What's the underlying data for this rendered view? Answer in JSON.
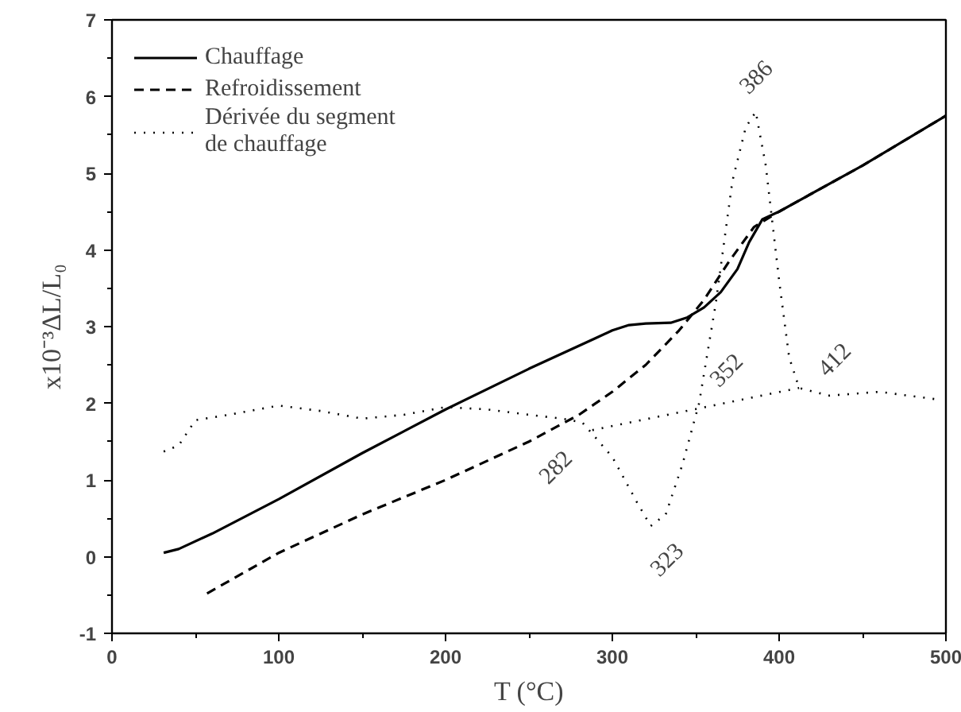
{
  "chart_data": {
    "type": "line",
    "xlabel": "T (°C)",
    "ylabel": "x10⁻³ΔL/L₀",
    "xlim": [
      0,
      500
    ],
    "ylim": [
      -1,
      7
    ],
    "xticks": [
      0,
      100,
      200,
      300,
      400,
      500
    ],
    "yticks": [
      -1,
      0,
      1,
      2,
      3,
      4,
      5,
      6,
      7
    ],
    "grid": false,
    "legend": "top left",
    "series": [
      {
        "name": "Chauffage",
        "color": "#000000",
        "line_style": "solid",
        "x": [
          31,
          40,
          60,
          100,
          150,
          200,
          250,
          290,
          300,
          310,
          320,
          335,
          345,
          355,
          365,
          375,
          382,
          390,
          400,
          450,
          500
        ],
        "values": [
          0.05,
          0.1,
          0.3,
          0.75,
          1.35,
          1.92,
          2.45,
          2.85,
          2.95,
          3.02,
          3.04,
          3.05,
          3.12,
          3.25,
          3.45,
          3.75,
          4.1,
          4.4,
          4.5,
          5.1,
          5.75
        ]
      },
      {
        "name": "Refroidissement",
        "color": "#000000",
        "line_style": "dashed",
        "x": [
          57,
          100,
          150,
          200,
          250,
          280,
          300,
          320,
          340,
          355,
          370,
          385,
          400,
          450,
          500
        ],
        "values": [
          -0.48,
          0.05,
          0.55,
          1.0,
          1.5,
          1.85,
          2.15,
          2.5,
          2.95,
          3.35,
          3.85,
          4.3,
          4.5,
          5.1,
          5.75
        ]
      },
      {
        "name": "Dérivée du segment\nde chauffage",
        "color": "#000000",
        "line_style": "dotted",
        "x": [
          31,
          40,
          50,
          70,
          100,
          125,
          150,
          175,
          200,
          225,
          250,
          270,
          282,
          300,
          315,
          323,
          332,
          342,
          352,
          362,
          372,
          380,
          386,
          392,
          400,
          406,
          412,
          430,
          460,
          495
        ],
        "values": [
          1.37,
          1.45,
          1.78,
          1.85,
          1.97,
          1.9,
          1.8,
          1.85,
          1.95,
          1.92,
          1.85,
          1.8,
          1.75,
          1.3,
          0.7,
          0.4,
          0.55,
          1.2,
          2.0,
          3.3,
          4.9,
          5.6,
          5.8,
          5.1,
          3.6,
          2.6,
          2.2,
          2.1,
          2.15,
          2.05
        ]
      },
      {
        "color": "#000000",
        "line_style": "dotted",
        "x": [
          288,
          412
        ],
        "values": [
          1.65,
          2.2
        ]
      }
    ],
    "annotations": [
      {
        "text": "386",
        "x": 386,
        "y": 5.8
      },
      {
        "text": "282",
        "x": 282,
        "y": 1.75
      },
      {
        "text": "323",
        "x": 323,
        "y": 0.4
      },
      {
        "text": "352",
        "x": 352,
        "y": 2.0
      },
      {
        "text": "412",
        "x": 412,
        "y": 2.2
      }
    ]
  }
}
